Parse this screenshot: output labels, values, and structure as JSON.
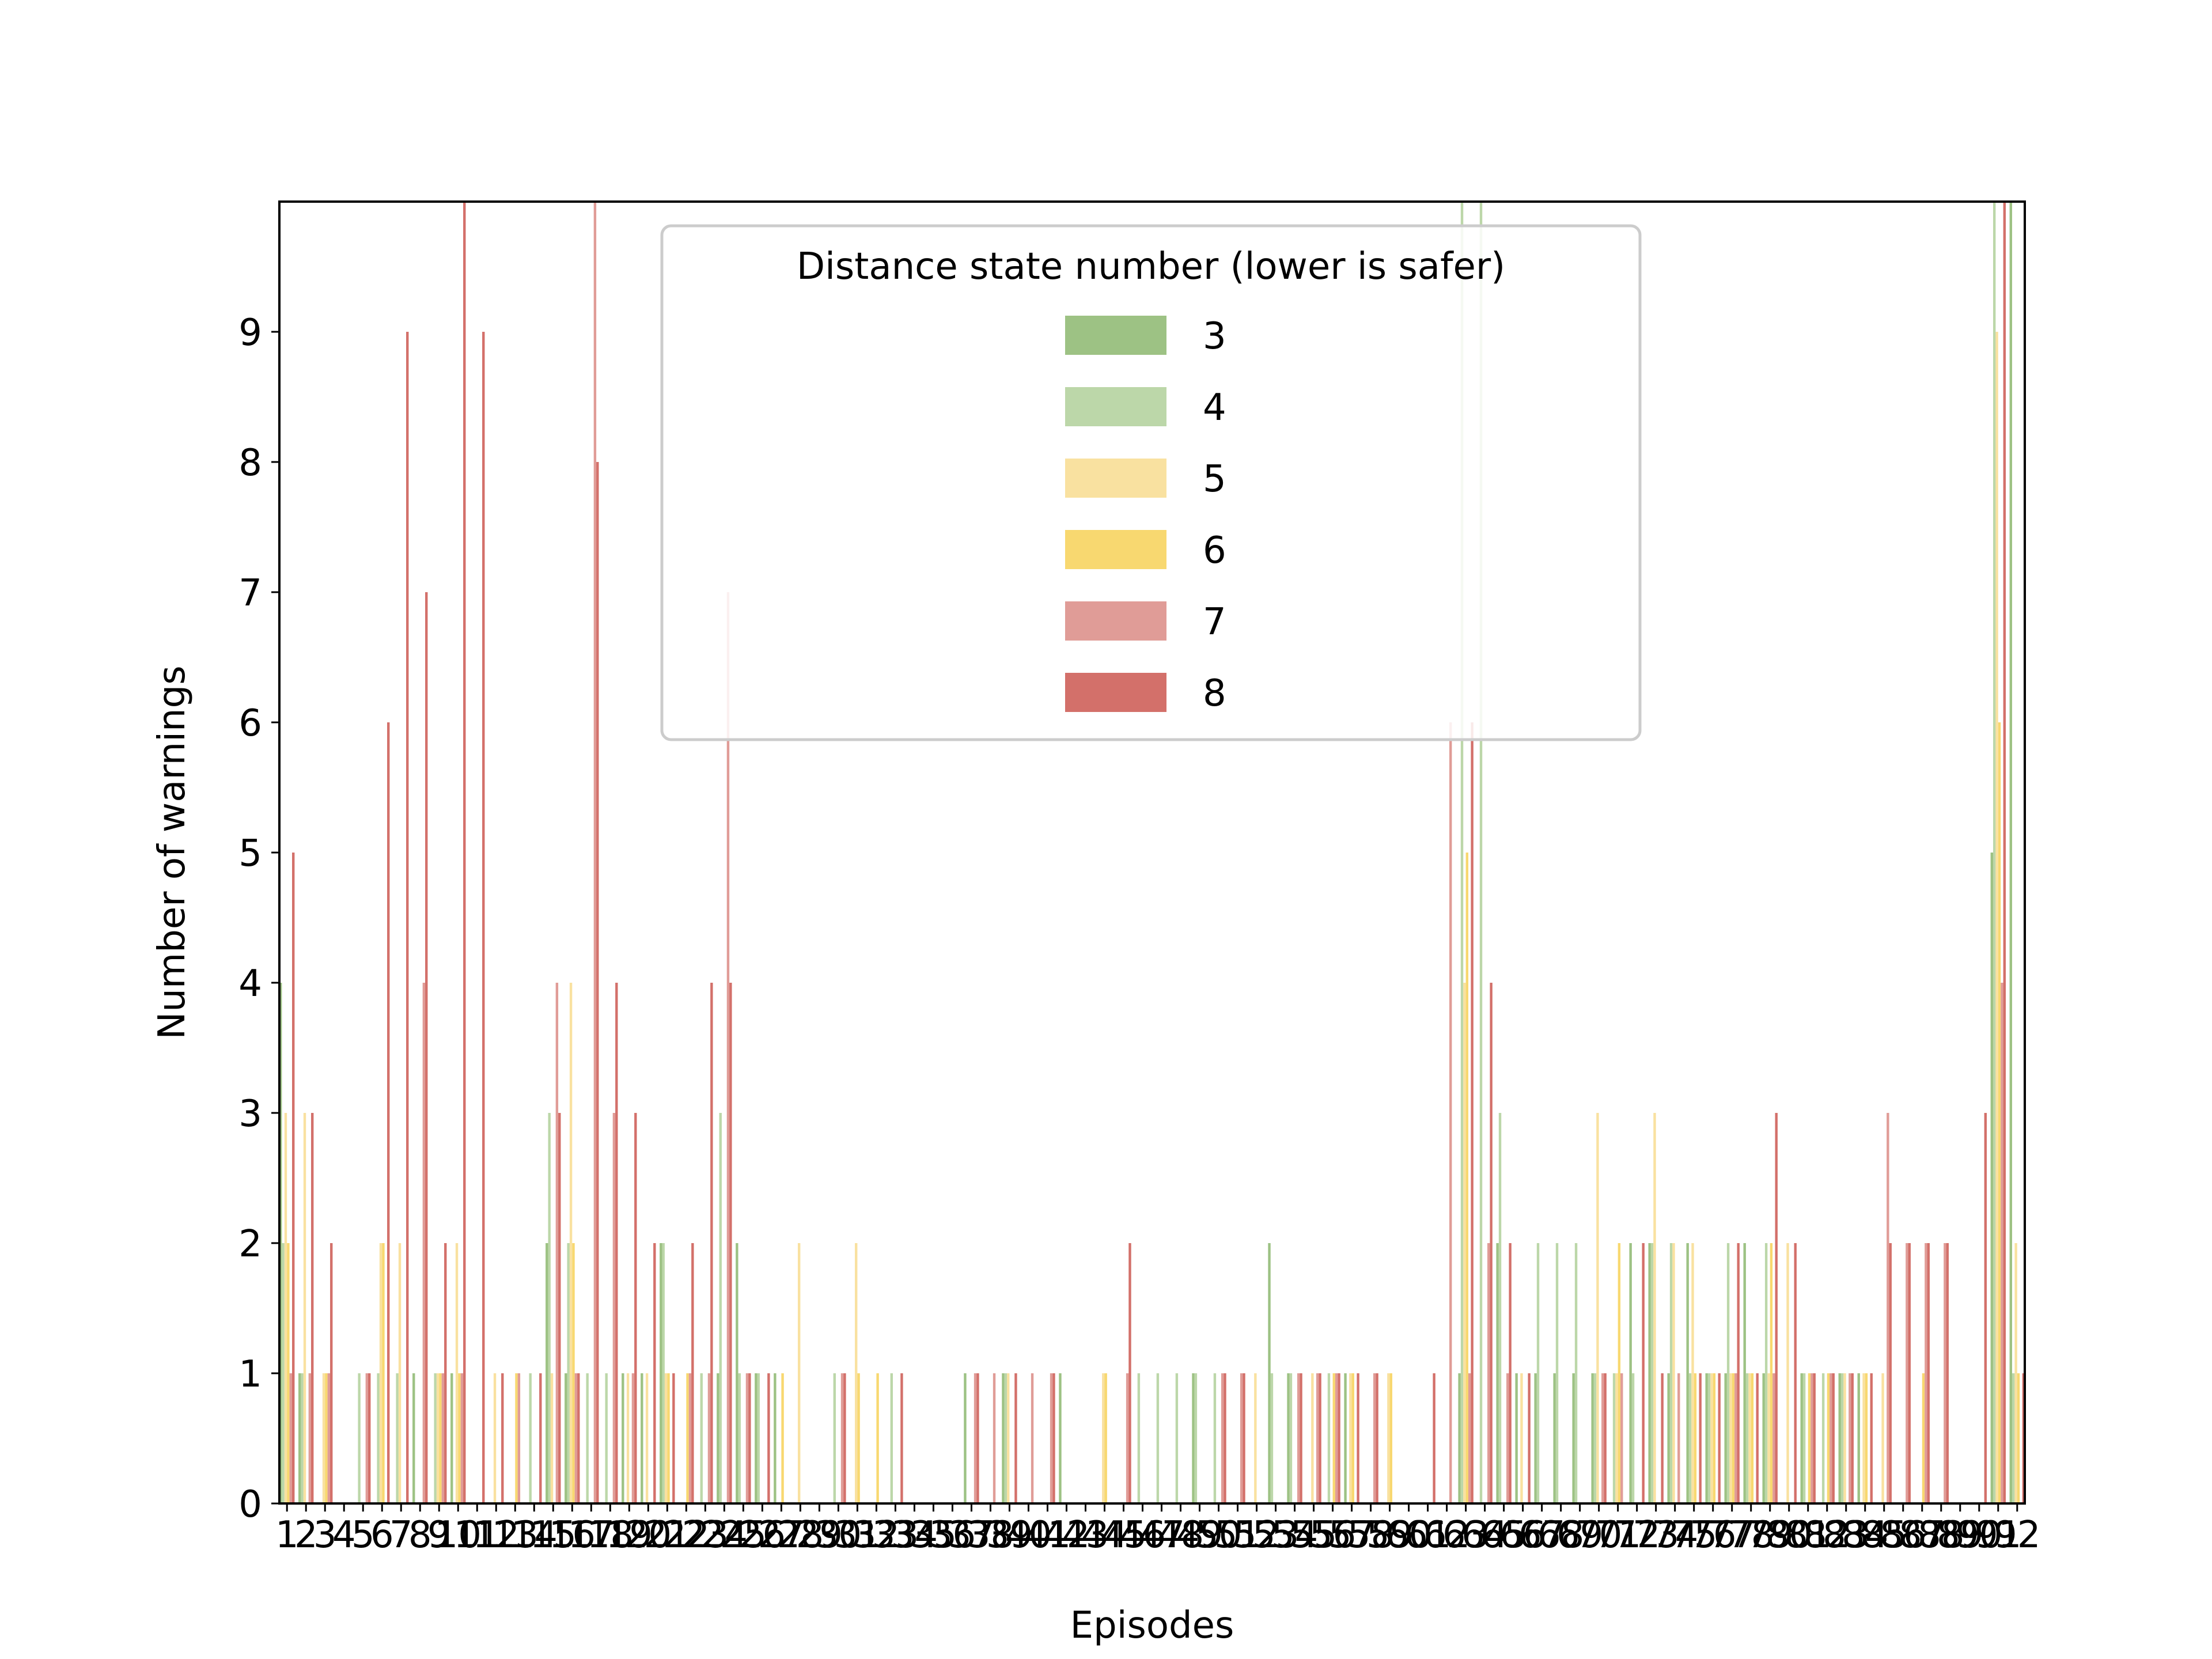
{
  "chart_data": {
    "type": "bar",
    "xlabel": "Episodes",
    "ylabel": "Number of warnings",
    "ylim": [
      0,
      10
    ],
    "yticks": [
      0,
      1,
      2,
      3,
      4,
      5,
      6,
      7,
      8,
      9
    ],
    "categories": [
      1,
      2,
      3,
      4,
      5,
      6,
      7,
      8,
      9,
      10,
      11,
      12,
      13,
      14,
      15,
      16,
      17,
      18,
      19,
      20,
      21,
      22,
      23,
      24,
      25,
      26,
      27,
      28,
      29,
      30,
      31,
      32,
      33,
      34,
      35,
      36,
      37,
      38,
      39,
      40,
      41,
      42,
      43,
      44,
      45,
      46,
      47,
      48,
      49,
      50,
      51,
      52,
      53,
      54,
      55,
      56,
      57,
      58,
      59,
      60,
      61,
      62,
      63,
      64,
      65,
      66,
      67,
      68,
      69,
      70,
      71,
      72,
      73,
      74,
      75,
      76,
      77,
      78,
      79,
      80,
      81,
      82,
      83,
      84,
      85,
      86,
      87,
      88,
      89,
      90,
      91,
      92
    ],
    "legend": {
      "title": "Distance state number (lower is safer)",
      "placement": "upper center"
    },
    "series": [
      {
        "name": "3",
        "color": "#9dc284",
        "values": [
          4,
          1,
          0,
          0,
          0,
          0,
          0,
          1,
          0,
          1,
          0,
          0,
          0,
          0,
          2,
          1,
          0,
          0,
          1,
          1,
          2,
          0,
          0,
          1,
          2,
          1,
          1,
          0,
          0,
          0,
          0,
          0,
          0,
          0,
          0,
          0,
          1,
          0,
          1,
          0,
          0,
          1,
          0,
          0,
          0,
          0,
          0,
          0,
          1,
          0,
          0,
          0,
          2,
          1,
          0,
          0,
          1,
          0,
          0,
          0,
          0,
          0,
          1,
          0,
          2,
          1,
          1,
          1,
          1,
          1,
          0,
          2,
          2,
          1,
          2,
          1,
          1,
          2,
          1,
          0,
          1,
          0,
          1,
          1,
          0,
          0,
          0,
          0,
          0,
          0,
          5,
          10
        ]
      },
      {
        "name": "4",
        "color": "#bcd7a9",
        "values": [
          2,
          1,
          0,
          0,
          1,
          1,
          1,
          0,
          1,
          0,
          0,
          0,
          0,
          1,
          3,
          2,
          1,
          1,
          0,
          0,
          2,
          0,
          1,
          3,
          1,
          1,
          0,
          0,
          0,
          1,
          0,
          0,
          1,
          0,
          0,
          0,
          0,
          0,
          1,
          0,
          0,
          0,
          0,
          0,
          0,
          1,
          1,
          1,
          1,
          1,
          0,
          0,
          1,
          1,
          0,
          1,
          0,
          0,
          0,
          0,
          0,
          0,
          10,
          10,
          3,
          0,
          2,
          2,
          2,
          1,
          1,
          1,
          2,
          2,
          1,
          1,
          2,
          1,
          2,
          0,
          1,
          1,
          1,
          0,
          0,
          0,
          0,
          0,
          0,
          0,
          10,
          1
        ]
      },
      {
        "name": "5",
        "color": "#f9e1a0",
        "values": [
          3,
          3,
          1,
          0,
          0,
          2,
          2,
          0,
          1,
          2,
          0,
          1,
          0,
          0,
          1,
          4,
          0,
          0,
          1,
          1,
          1,
          0,
          0,
          0,
          0,
          0,
          0,
          2,
          0,
          0,
          2,
          0,
          0,
          0,
          0,
          0,
          0,
          0,
          1,
          0,
          0,
          0,
          0,
          1,
          0,
          0,
          0,
          0,
          0,
          0,
          0,
          1,
          0,
          0,
          1,
          0,
          1,
          0,
          1,
          0,
          0,
          0,
          4,
          0,
          0,
          1,
          0,
          0,
          0,
          3,
          1,
          0,
          3,
          2,
          2,
          1,
          1,
          1,
          1,
          2,
          0,
          0,
          1,
          1,
          1,
          0,
          0,
          0,
          0,
          0,
          9,
          2
        ]
      },
      {
        "name": "6",
        "color": "#f8d870",
        "values": [
          2,
          0,
          1,
          0,
          0,
          2,
          0,
          0,
          1,
          1,
          0,
          0,
          1,
          0,
          0,
          2,
          0,
          0,
          0,
          0,
          1,
          1,
          0,
          0,
          0,
          0,
          1,
          0,
          0,
          0,
          1,
          1,
          0,
          0,
          0,
          0,
          0,
          0,
          0,
          0,
          0,
          0,
          0,
          1,
          0,
          0,
          0,
          0,
          0,
          0,
          0,
          0,
          0,
          0,
          0,
          1,
          1,
          0,
          1,
          0,
          0,
          0,
          5,
          0,
          0,
          0,
          0,
          0,
          0,
          0,
          2,
          0,
          0,
          0,
          1,
          1,
          1,
          1,
          2,
          0,
          1,
          1,
          0,
          1,
          0,
          0,
          1,
          0,
          0,
          0,
          6,
          1
        ]
      },
      {
        "name": "7",
        "color": "#e09c97",
        "values": [
          1,
          1,
          1,
          0,
          1,
          0,
          0,
          4,
          1,
          1,
          0,
          0,
          1,
          0,
          4,
          1,
          10,
          3,
          1,
          0,
          0,
          1,
          1,
          7,
          1,
          0,
          0,
          0,
          0,
          1,
          0,
          0,
          0,
          0,
          0,
          0,
          1,
          1,
          0,
          1,
          1,
          0,
          0,
          0,
          1,
          0,
          0,
          0,
          0,
          1,
          1,
          0,
          0,
          1,
          1,
          1,
          0,
          1,
          0,
          0,
          0,
          6,
          1,
          2,
          1,
          0,
          0,
          0,
          0,
          1,
          1,
          0,
          0,
          1,
          0,
          0,
          1,
          0,
          1,
          0,
          1,
          1,
          1,
          0,
          3,
          2,
          2,
          2,
          0,
          0,
          4,
          0
        ]
      },
      {
        "name": "8",
        "color": "#d3706a",
        "values": [
          5,
          3,
          2,
          0,
          1,
          6,
          9,
          7,
          2,
          10,
          9,
          1,
          0,
          1,
          3,
          1,
          8,
          4,
          3,
          2,
          1,
          2,
          4,
          4,
          1,
          1,
          0,
          0,
          0,
          1,
          0,
          0,
          1,
          0,
          0,
          0,
          1,
          0,
          1,
          0,
          1,
          0,
          0,
          0,
          2,
          0,
          0,
          0,
          0,
          1,
          1,
          0,
          0,
          1,
          1,
          1,
          1,
          1,
          0,
          0,
          1,
          0,
          6,
          4,
          2,
          1,
          0,
          0,
          0,
          1,
          0,
          2,
          1,
          0,
          1,
          1,
          2,
          1,
          3,
          2,
          1,
          1,
          1,
          1,
          2,
          2,
          2,
          2,
          0,
          3,
          10,
          1
        ]
      }
    ]
  }
}
